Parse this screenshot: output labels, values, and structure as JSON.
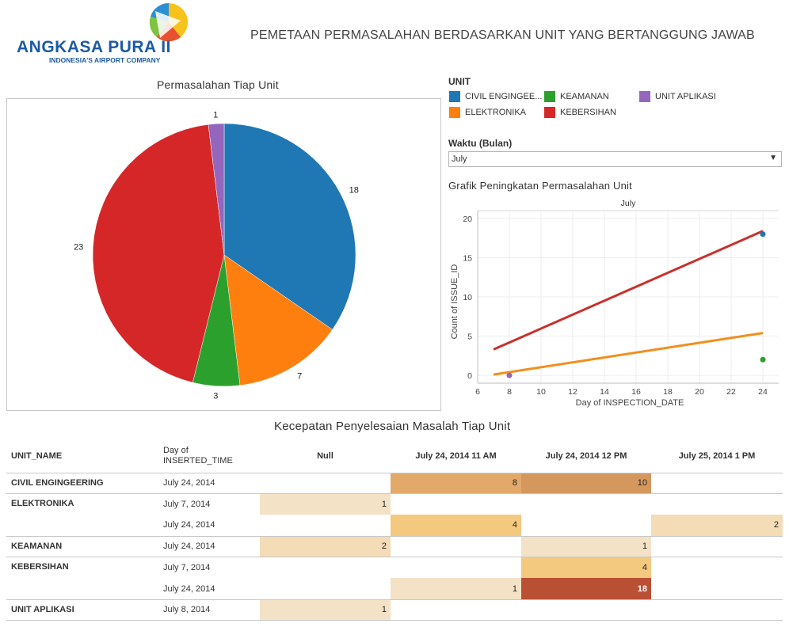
{
  "header": {
    "logo_brand": "ANGKASA PURA II",
    "logo_tagline": "INDONESIA'S AIRPORT COMPANY",
    "dashboard_title": "PEMETAAN PERMASALAHAN BERDASARKAN UNIT YANG BERTANGGUNG JAWAB"
  },
  "legend": {
    "title": "UNIT",
    "items": [
      {
        "label": "CIVIL ENGINGEE...",
        "color": "#1f77b4"
      },
      {
        "label": "KEAMANAN",
        "color": "#2ca02c"
      },
      {
        "label": "UNIT APLIKASI",
        "color": "#9467bd"
      },
      {
        "label": "ELEKTRONIKA",
        "color": "#ff7f0e"
      },
      {
        "label": "KEBERSIHAN",
        "color": "#d62728"
      }
    ]
  },
  "filter": {
    "title": "Waktu (Bulan)",
    "value": "July"
  },
  "chart_data": [
    {
      "type": "pie",
      "title": "Permasalahan Tiap Unit",
      "slices": [
        {
          "name": "CIVIL ENGINGEERING",
          "value": 18,
          "color": "#1f77b4"
        },
        {
          "name": "ELEKTRONIKA",
          "value": 7,
          "color": "#ff7f0e"
        },
        {
          "name": "KEAMANAN",
          "value": 3,
          "color": "#2ca02c"
        },
        {
          "name": "KEBERSIHAN",
          "value": 23,
          "color": "#d62728"
        },
        {
          "name": "UNIT APLIKASI",
          "value": 1,
          "color": "#9467bd"
        }
      ]
    },
    {
      "type": "scatter",
      "title": "Grafik Peningkatan Permasalahan Unit",
      "panel_header": "July",
      "xlabel": "Day of INSPECTION_DATE",
      "ylabel": "Count of ISSUE_ID",
      "xlim": [
        6,
        25
      ],
      "ylim": [
        -1,
        21
      ],
      "xticks": [
        6,
        8,
        10,
        12,
        14,
        16,
        18,
        20,
        22,
        24
      ],
      "yticks": [
        0,
        5,
        10,
        15,
        20
      ],
      "points": [
        {
          "series": "CIVIL ENGINGEERING",
          "x": 24,
          "y": 18,
          "color": "#1f77b4"
        },
        {
          "series": "KEAMANAN",
          "x": 24,
          "y": 2,
          "color": "#2ca02c"
        },
        {
          "series": "UNIT APLIKASI",
          "x": 8,
          "y": 0,
          "color": "#9467bd"
        }
      ],
      "trend_lines": [
        {
          "series": "KEBERSIHAN",
          "x": [
            7,
            24
          ],
          "y": [
            3.3,
            18.4
          ],
          "color": "#c9302c"
        },
        {
          "series": "ELEKTRONIKA",
          "x": [
            7,
            24
          ],
          "y": [
            0.1,
            5.4
          ],
          "color": "#f28e1c"
        }
      ]
    }
  ],
  "highlight_table": {
    "title": "Kecepatan Penyelesaian Masalah Tiap Unit",
    "col_unit": "UNIT_NAME",
    "col_day": "Day of\nINSERTED_TIME",
    "columns": [
      "Null",
      "July 24, 2014 11 AM",
      "July 24, 2014 12 PM",
      "July 25, 2014 1 PM"
    ],
    "rows": [
      {
        "unit": "CIVIL ENGINGEERING",
        "day": "July 24, 2014",
        "values": [
          null,
          8,
          10,
          null
        ]
      },
      {
        "unit": "ELEKTRONIKA",
        "day": "July 7, 2014",
        "values": [
          1,
          null,
          null,
          null
        ]
      },
      {
        "unit": "",
        "day": "July 24, 2014",
        "values": [
          null,
          4,
          null,
          2
        ]
      },
      {
        "unit": "KEAMANAN",
        "day": "July 24, 2014",
        "values": [
          2,
          null,
          1,
          null
        ]
      },
      {
        "unit": "KEBERSIHAN",
        "day": "July 7, 2014",
        "values": [
          null,
          null,
          4,
          null
        ]
      },
      {
        "unit": "",
        "day": "July 24, 2014",
        "values": [
          null,
          1,
          18,
          null
        ]
      },
      {
        "unit": "UNIT APLIKASI",
        "day": "July 8, 2014",
        "values": [
          1,
          null,
          null,
          null
        ]
      }
    ]
  }
}
